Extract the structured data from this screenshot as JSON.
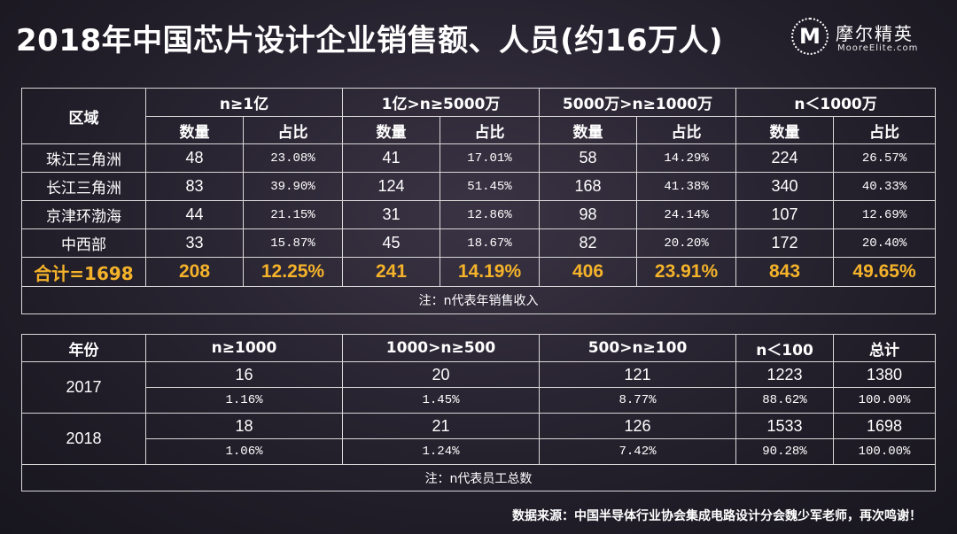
{
  "title": "2018年中国芯片设计企业销售额、人员(约16万人)",
  "logo": {
    "cn": "摩尔精英",
    "en": "MooreElite.com",
    "mark": "M"
  },
  "sales_table": {
    "region_header": "区域",
    "groups": [
      "n≥1亿",
      "1亿>n≥5000万",
      "5000万>n≥1000万",
      "n＜1000万"
    ],
    "sub_count": "数量",
    "sub_ratio": "占比",
    "rows": [
      {
        "region": "珠江三角洲",
        "cells": [
          "48",
          "23.08%",
          "41",
          "17.01%",
          "58",
          "14.29%",
          "224",
          "26.57%"
        ]
      },
      {
        "region": "长江三角洲",
        "cells": [
          "83",
          "39.90%",
          "124",
          "51.45%",
          "168",
          "41.38%",
          "340",
          "40.33%"
        ]
      },
      {
        "region": "京津环渤海",
        "cells": [
          "44",
          "21.15%",
          "31",
          "12.86%",
          "98",
          "24.14%",
          "107",
          "12.69%"
        ]
      },
      {
        "region": "中西部",
        "cells": [
          "33",
          "15.87%",
          "45",
          "18.67%",
          "82",
          "20.20%",
          "172",
          "20.40%"
        ]
      }
    ],
    "total": {
      "label": "合计=1698",
      "cells": [
        "208",
        "12.25%",
        "241",
        "14.19%",
        "406",
        "23.91%",
        "843",
        "49.65%"
      ]
    },
    "note": "注：n代表年销售收入"
  },
  "staff_table": {
    "year_header": "年份",
    "headers": [
      "n≥1000",
      "1000>n≥500",
      "500>n≥100",
      "n＜100",
      "总计"
    ],
    "years": [
      {
        "year": "2017",
        "counts": [
          "16",
          "20",
          "121",
          "1223",
          "1380"
        ],
        "ratios": [
          "1.16%",
          "1.45%",
          "8.77%",
          "88.62%",
          "100.00%"
        ]
      },
      {
        "year": "2018",
        "counts": [
          "18",
          "21",
          "126",
          "1533",
          "1698"
        ],
        "ratios": [
          "1.06%",
          "1.24%",
          "7.42%",
          "90.28%",
          "100.00%"
        ]
      }
    ],
    "note": "注：n代表员工总数"
  },
  "source": "数据来源：中国半导体行业协会集成电路设计分会魏少军老师，再次鸣谢！",
  "colors": {
    "highlight": "#f5b32a",
    "border": "#d8d8d8"
  }
}
